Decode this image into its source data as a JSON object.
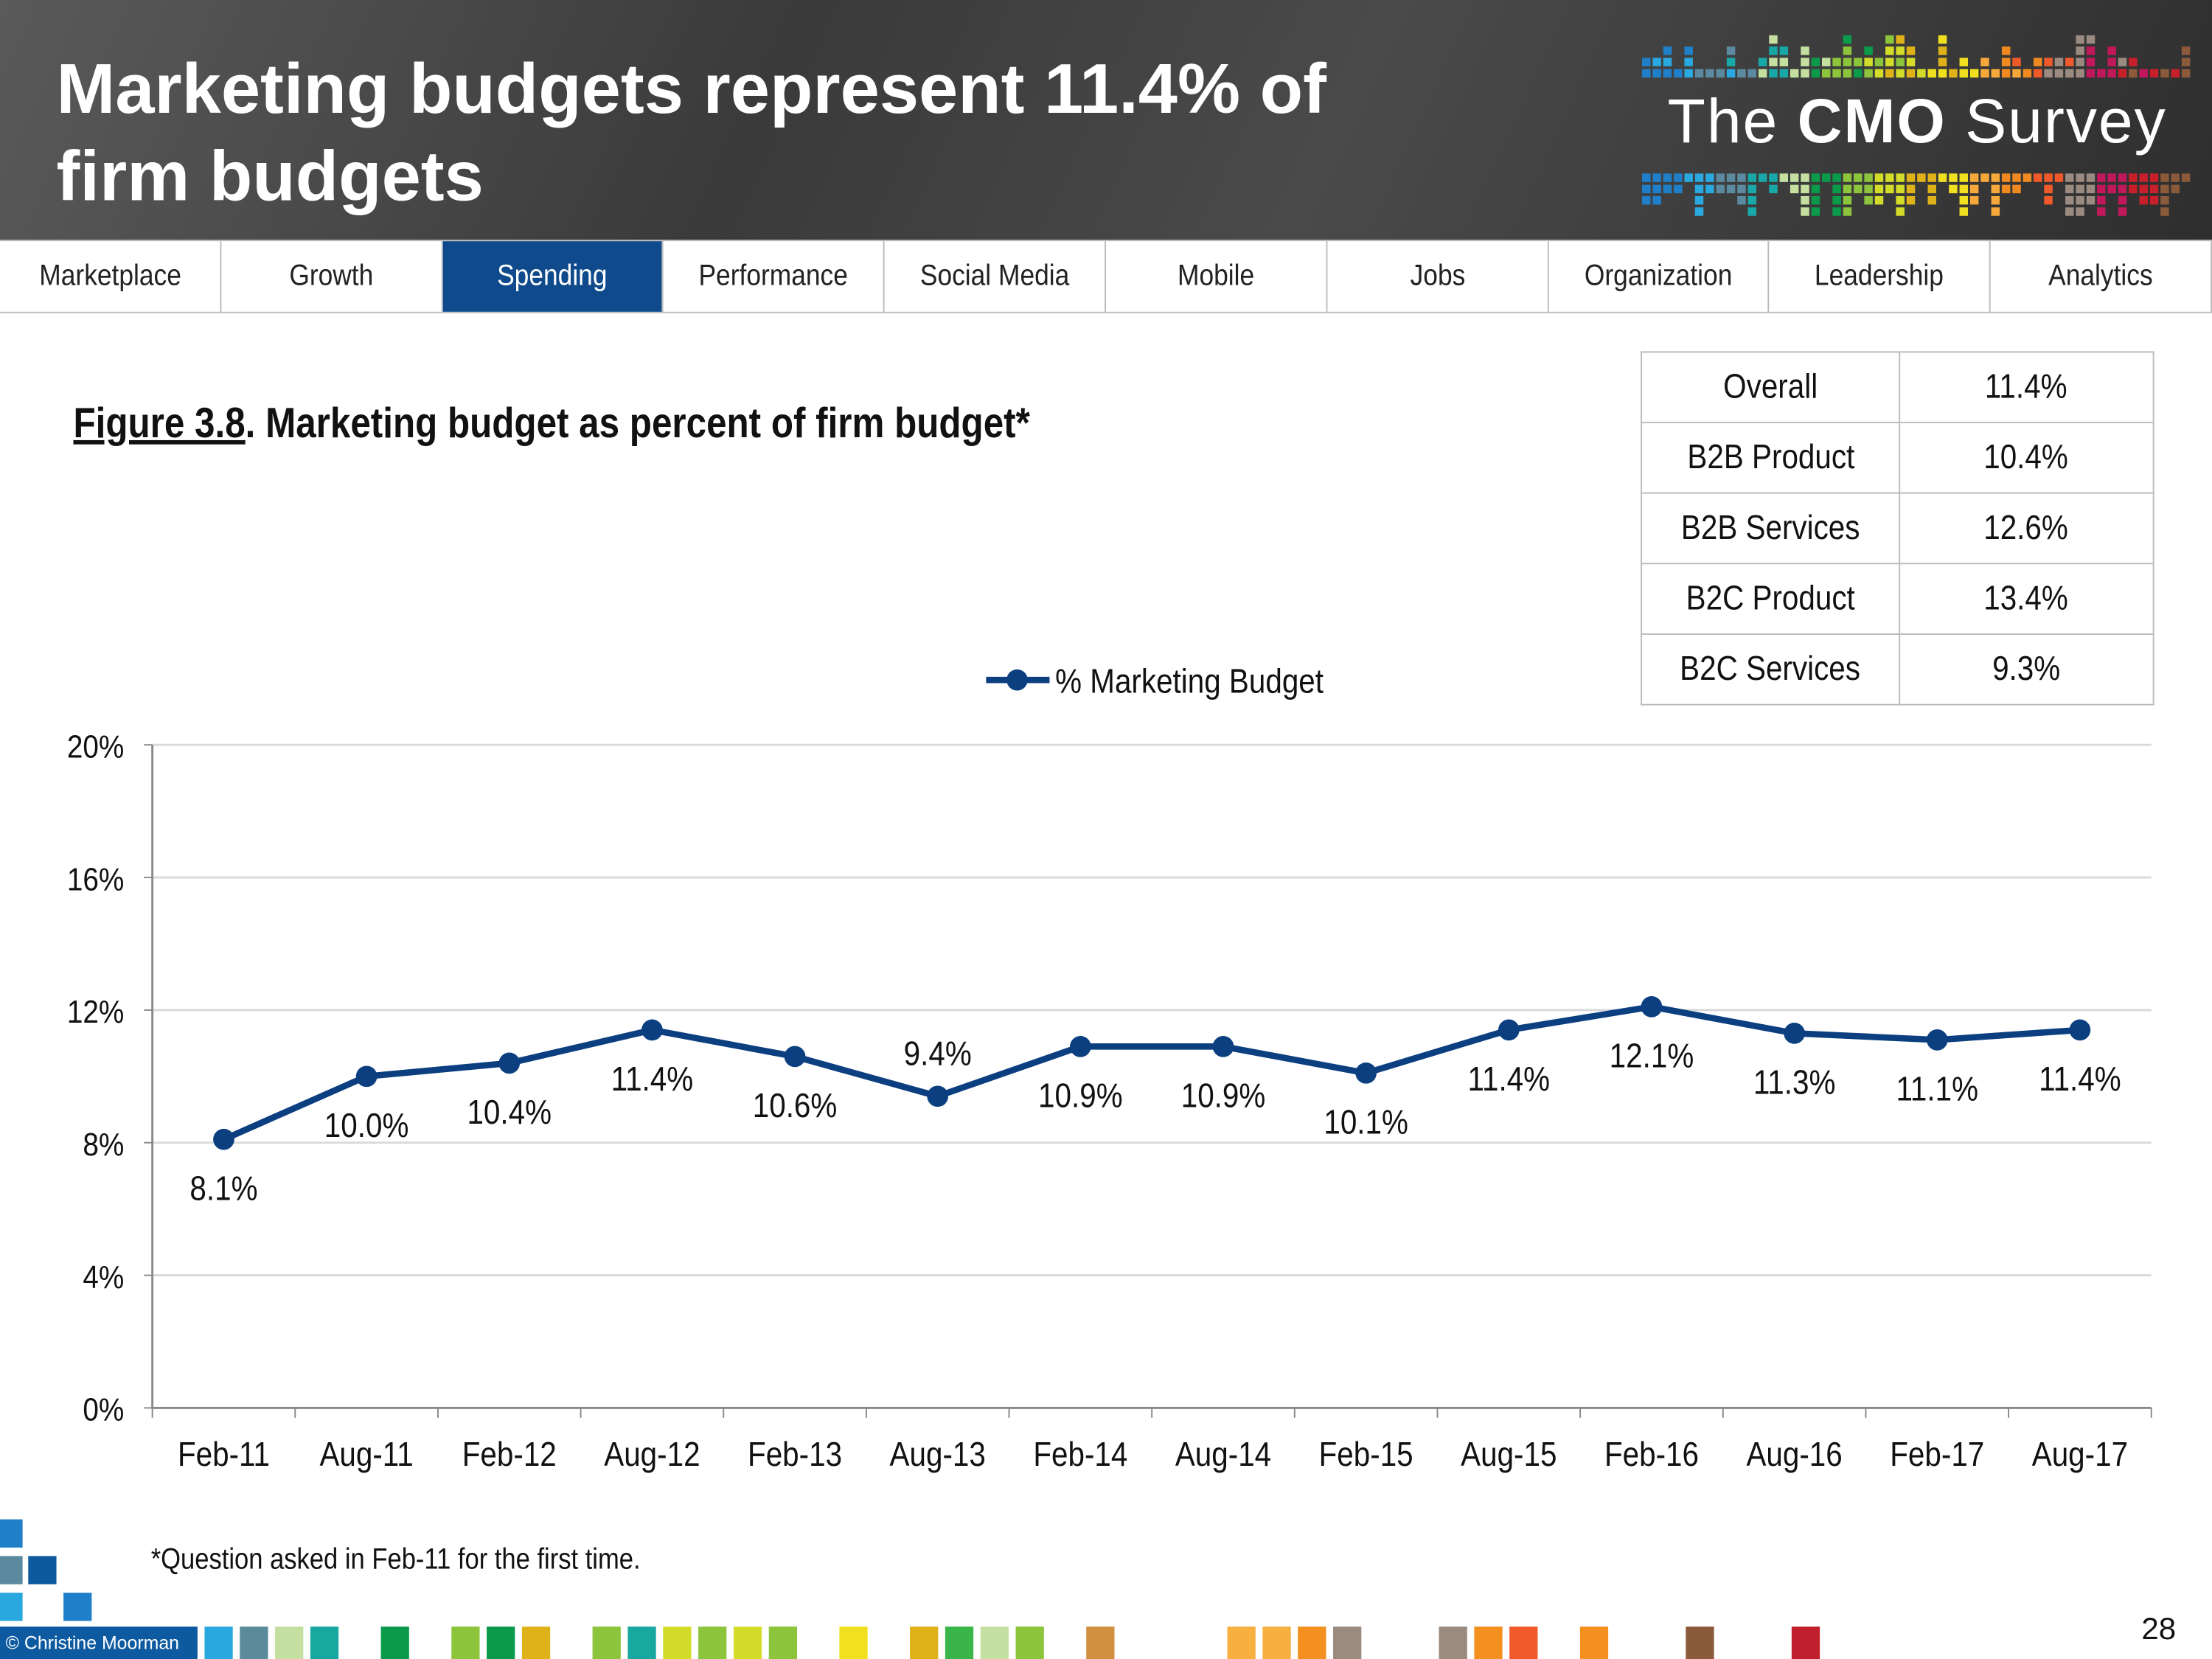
{
  "header": {
    "title_line1": "Marketing budgets represent 11.4% of",
    "title_line2": "firm budgets",
    "logo": {
      "pre": "The",
      "bold": "CMO",
      "post": "Survey"
    }
  },
  "nav": {
    "tabs": [
      {
        "label": "Marketplace",
        "active": false
      },
      {
        "label": "Growth",
        "active": false
      },
      {
        "label": "Spending",
        "active": true
      },
      {
        "label": "Performance",
        "active": false
      },
      {
        "label": "Social Media",
        "active": false
      },
      {
        "label": "Mobile",
        "active": false
      },
      {
        "label": "Jobs",
        "active": false
      },
      {
        "label": "Organization",
        "active": false
      },
      {
        "label": "Leadership",
        "active": false
      },
      {
        "label": "Analytics",
        "active": false
      }
    ],
    "active_color": "#0e4a8c"
  },
  "figure": {
    "number": "Figure 3.8",
    "caption": ".  Marketing budget as percent of firm budget*"
  },
  "segments": [
    {
      "label": "Overall",
      "value": "11.4%"
    },
    {
      "label": "B2B Product",
      "value": "10.4%"
    },
    {
      "label": "B2B Services",
      "value": "12.6%"
    },
    {
      "label": "B2C Product",
      "value": "13.4%"
    },
    {
      "label": "B2C Services",
      "value": "9.3%"
    }
  ],
  "chart_data": {
    "type": "line",
    "categories": [
      "Feb-11",
      "Aug-11",
      "Feb-12",
      "Aug-12",
      "Feb-13",
      "Aug-13",
      "Feb-14",
      "Aug-14",
      "Feb-15",
      "Aug-15",
      "Feb-16",
      "Aug-16",
      "Feb-17",
      "Aug-17"
    ],
    "series": [
      {
        "name": "% Marketing Budget",
        "values": [
          8.1,
          10.0,
          10.4,
          11.4,
          10.6,
          9.4,
          10.9,
          10.9,
          10.1,
          11.4,
          12.1,
          11.3,
          11.1,
          11.4
        ],
        "color": "#0b3f80"
      }
    ],
    "data_labels": [
      "8.1%",
      "10.0%",
      "10.4%",
      "11.4%",
      "10.6%",
      "9.4%",
      "10.9%",
      "10.9%",
      "10.1%",
      "11.4%",
      "12.1%",
      "11.3%",
      "11.1%",
      "11.4%"
    ],
    "yticks": [
      "0%",
      "4%",
      "8%",
      "12%",
      "16%",
      "20%"
    ],
    "ylim": [
      0,
      20
    ],
    "grid": true,
    "legend": "top-center"
  },
  "footnote": "*Question asked in Feb-11 for the first time.",
  "copyright": "© Christine Moorman",
  "page_number": "28"
}
